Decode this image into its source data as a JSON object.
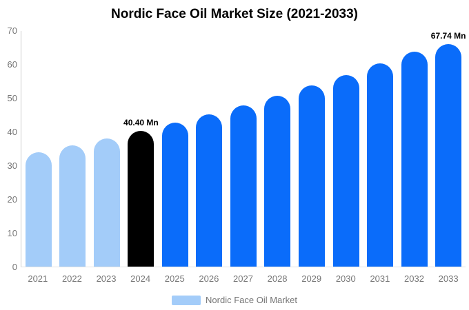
{
  "chart": {
    "title": "Nordic Face Oil Market Size (2021-2033)",
    "legend_label": "Nordic Face Oil Market"
  },
  "chart_data": {
    "type": "bar",
    "title": "Nordic Face Oil Market Size (2021-2033)",
    "unit": "Mn",
    "categories": [
      "2021",
      "2022",
      "2023",
      "2024",
      "2025",
      "2026",
      "2027",
      "2028",
      "2029",
      "2030",
      "2031",
      "2032",
      "2033"
    ],
    "values": [
      34.0,
      36.0,
      38.1,
      40.4,
      42.8,
      45.3,
      48.0,
      50.8,
      53.8,
      57.0,
      60.4,
      63.9,
      67.74
    ],
    "bar_colors": [
      "#a3ccf9",
      "#a3ccf9",
      "#a3ccf9",
      "#000000",
      "#0a6cfa",
      "#0a6cfa",
      "#0a6cfa",
      "#0a6cfa",
      "#0a6cfa",
      "#0a6cfa",
      "#0a6cfa",
      "#0a6cfa",
      "#0a6cfa"
    ],
    "annotations": [
      {
        "index": 3,
        "text": "40.40 Mn"
      },
      {
        "index": 12,
        "text": "67.74 Mn"
      }
    ],
    "yticks": [
      0,
      10,
      20,
      30,
      40,
      50,
      60,
      70
    ],
    "ylim": [
      0,
      70
    ],
    "grid": false,
    "legend_position": "bottom",
    "legend": {
      "label": "Nordic Face Oil Market",
      "swatch_color": "#a3ccf9"
    },
    "colors": {
      "historical": "#a3ccf9",
      "base_year": "#000000",
      "forecast": "#0a6cfa"
    },
    "xlabel": "",
    "ylabel": ""
  }
}
